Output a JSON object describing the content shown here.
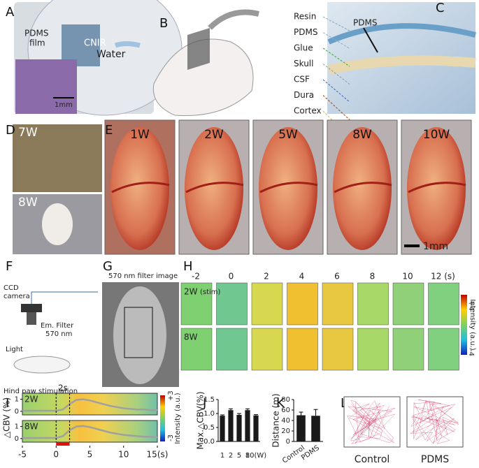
{
  "panel_labels": [
    "A",
    "B",
    "C",
    "D",
    "E",
    "F",
    "G",
    "H",
    "I",
    "J",
    "K",
    "L"
  ],
  "panel_a": {
    "film_label": [
      "PDMS",
      "film"
    ],
    "water": "Water",
    "scale": "1mm",
    "logo": "CNIR"
  },
  "panel_c": {
    "title": "PDMS",
    "layers": [
      "Resin",
      "PDMS",
      "Glue",
      "Skull",
      "CSF",
      "Dura",
      "Cortex"
    ]
  },
  "panel_d": {
    "ages": [
      "7W",
      "8W"
    ]
  },
  "panel_e": {
    "weeks": [
      "1W",
      "2W",
      "5W",
      "8W",
      "10W"
    ],
    "scale": "1mm"
  },
  "panel_f": {
    "camera": [
      "CCD",
      "camera"
    ],
    "filter": [
      "Em. Filter",
      "570 nm"
    ],
    "light": "Light",
    "caption": "Hind paw stimulation"
  },
  "panel_g": {
    "title": "570 nm filter image"
  },
  "panel_h": {
    "times": [
      "-2",
      "0",
      "2",
      "4",
      "6",
      "8",
      "10",
      "12 (s)"
    ],
    "stim": "(stim)",
    "rows": [
      "2W",
      "8W"
    ],
    "colorbar": {
      "max": "+4",
      "min": "-4",
      "label": "Intensity (a.u.)"
    }
  },
  "panel_l": {
    "groups": [
      "Control",
      "PDMS"
    ]
  },
  "chart_data": [
    {
      "type": "line",
      "ylabel": "△CBV (%)",
      "annotation": "2s",
      "stimulus": [
        0,
        2
      ],
      "x": [
        -5,
        -4,
        -3,
        -2,
        -1,
        0,
        1,
        2,
        3,
        4,
        5,
        6,
        7,
        8,
        9,
        10,
        11,
        12,
        13,
        14,
        15
      ],
      "series": [
        {
          "name": "2W",
          "color": "#a0a0a0",
          "values": [
            0.05,
            0.05,
            0.05,
            0.05,
            0.05,
            0.05,
            0.15,
            0.6,
            0.95,
            1.0,
            0.9,
            0.75,
            0.6,
            0.45,
            0.35,
            0.25,
            0.2,
            0.15,
            0.15,
            0.1,
            0.1
          ]
        },
        {
          "name": "8W",
          "color": "#a0a0a0",
          "values": [
            0.05,
            0.05,
            0.05,
            0.05,
            0.05,
            0.05,
            0.2,
            0.7,
            1.0,
            1.05,
            0.95,
            0.8,
            0.65,
            0.5,
            0.4,
            0.3,
            0.25,
            0.2,
            0.15,
            0.15,
            0.1
          ]
        }
      ],
      "xlim": [
        -5,
        15
      ],
      "xticks": [
        -5,
        0,
        5,
        10,
        {
          "value": 15,
          "label": "15(s)"
        }
      ],
      "ylim": [
        -0.3,
        1.5
      ],
      "yticks": [
        0,
        1
      ],
      "colorbar": {
        "max": "+3",
        "min": "-3",
        "label": "Intensity (a.u.)"
      }
    },
    {
      "type": "bar",
      "ylabel": "Max.△CBV(%)",
      "categories": [
        "1",
        "2",
        "5",
        "8",
        "10(W)"
      ],
      "values": [
        0.92,
        1.12,
        0.95,
        1.12,
        0.93
      ],
      "errors": [
        0.03,
        0.05,
        0.05,
        0.05,
        0.03
      ],
      "color": "#1a1a1a",
      "ylim": [
        0,
        1.5
      ],
      "yticks": [
        {
          "value": 0,
          "label": "0.0"
        },
        {
          "value": 0.5,
          "label": "0.5"
        },
        {
          "value": 1,
          "label": "1.0"
        },
        {
          "value": 1.5,
          "label": "1.5"
        }
      ]
    },
    {
      "type": "bar",
      "ylabel": "Distance (m)",
      "categories": [
        "Control",
        "PDMS"
      ],
      "values": [
        50,
        49
      ],
      "errors": [
        6,
        12
      ],
      "color": "#1a1a1a",
      "ylim": [
        0,
        80
      ],
      "yticks": [
        0,
        20,
        40,
        60,
        80
      ]
    }
  ]
}
